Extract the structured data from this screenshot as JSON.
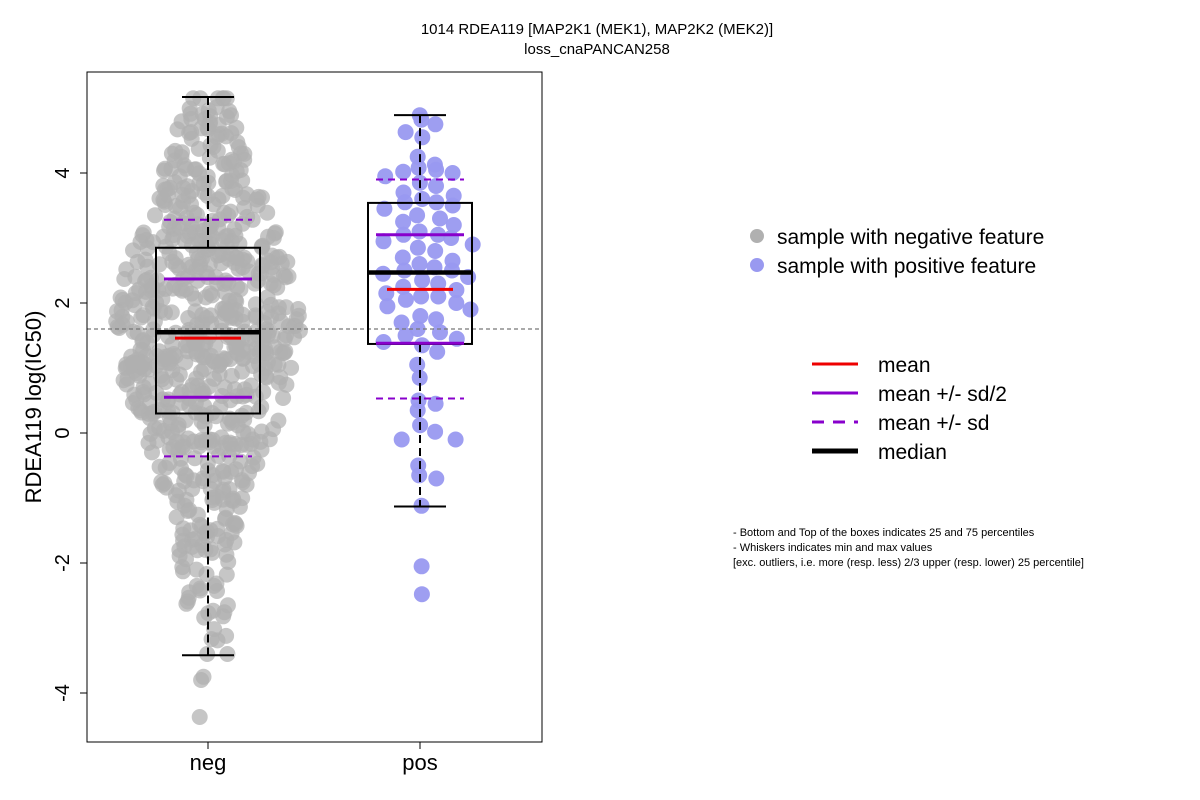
{
  "chart_data": {
    "type": "box",
    "title": "1014 RDEA119 [MAP2K1 (MEK1), MAP2K2 (MEK2)]",
    "subtitle": "loss_cnaPANCAN258",
    "ylabel": "RDEA119 log(IC50)",
    "xlabel": "",
    "categories": [
      "neg",
      "pos"
    ],
    "ylim": [
      -4.6,
      5.7
    ],
    "yticks": [
      -4,
      -2,
      0,
      2,
      4
    ],
    "reference_line": 1.6,
    "series": [
      {
        "category": "neg",
        "color": "#b0b0b0",
        "whisker_low": -3.42,
        "q1": 0.3,
        "median": 1.55,
        "q3": 2.85,
        "whisker_high": 5.17,
        "mean": 1.46,
        "mean_minus_half_sd": 0.55,
        "mean_plus_half_sd": 2.37,
        "mean_minus_sd": -0.36,
        "mean_plus_sd": 3.28,
        "n_points": 720,
        "points_top_outliers": [],
        "points_bottom_outliers": [
          -3.8,
          -3.75,
          -4.37
        ]
      },
      {
        "category": "pos",
        "color": "#9999f0",
        "whisker_low": -1.13,
        "q1": 1.37,
        "median": 2.47,
        "q3": 3.54,
        "whisker_high": 4.89,
        "mean": 2.21,
        "mean_minus_half_sd": 1.38,
        "mean_plus_half_sd": 3.05,
        "mean_minus_sd": 0.53,
        "mean_plus_sd": 3.9,
        "points": [
          4.89,
          4.82,
          4.75,
          4.63,
          4.55,
          4.25,
          4.13,
          4.08,
          4.05,
          4.02,
          4.0,
          3.95,
          3.85,
          3.8,
          3.7,
          3.65,
          3.6,
          3.55,
          3.55,
          3.5,
          3.45,
          3.35,
          3.3,
          3.25,
          3.2,
          3.1,
          3.05,
          3.05,
          3.0,
          2.95,
          2.9,
          2.85,
          2.8,
          2.7,
          2.65,
          2.6,
          2.55,
          2.5,
          2.5,
          2.45,
          2.4,
          2.35,
          2.3,
          2.25,
          2.2,
          2.15,
          2.1,
          2.1,
          2.05,
          2.0,
          1.95,
          1.9,
          1.8,
          1.75,
          1.7,
          1.6,
          1.55,
          1.5,
          1.45,
          1.4,
          1.35,
          1.25,
          1.05,
          0.85,
          0.5,
          0.45,
          0.35,
          0.12,
          0.02,
          -0.1,
          -0.1,
          -0.5,
          -0.65,
          -0.7,
          -1.12,
          -2.05,
          -2.48
        ]
      }
    ],
    "legend_points": [
      {
        "label": "sample with negative feature",
        "color": "#b0b0b0"
      },
      {
        "label": "sample with positive feature",
        "color": "#9999f0"
      }
    ],
    "legend_lines": [
      {
        "label": "mean",
        "color": "#ee0000",
        "style": "solid"
      },
      {
        "label": "mean +/- sd/2",
        "color": "#8800cc",
        "style": "solid"
      },
      {
        "label": "mean +/- sd",
        "color": "#8800cc",
        "style": "dashed"
      },
      {
        "label": "median",
        "color": "#000000",
        "style": "solid-thick"
      }
    ],
    "notes": [
      "- Bottom and Top of the boxes indicates 25 and 75 percentiles",
      "- Whiskers indicates min and max values",
      "[exc. outliers, i.e. more (resp. less) 2/3 upper (resp. lower) 25 percentile]"
    ]
  }
}
